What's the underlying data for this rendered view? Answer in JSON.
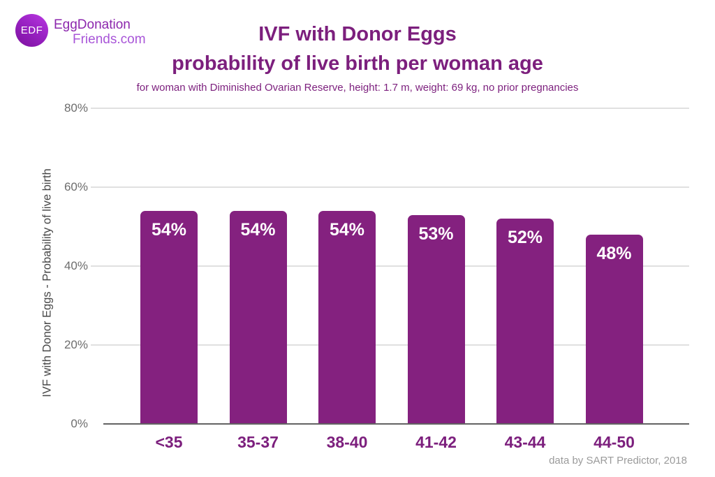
{
  "logo": {
    "badge": "EDF",
    "line1": "EggDonation",
    "line2": "Friends.com"
  },
  "header": {
    "title_line1": "IVF with Donor Eggs",
    "title_line2": "probability of live birth per woman age",
    "subtitle": "for woman with Diminished Ovarian Reserve, height: 1.7 m, weight: 69 kg, no prior pregnancies"
  },
  "chart_data": {
    "type": "bar",
    "categories": [
      "<35",
      "35-37",
      "38-40",
      "41-42",
      "43-44",
      "44-50"
    ],
    "values": [
      54,
      54,
      54,
      53,
      52,
      48
    ],
    "value_labels": [
      "54%",
      "54%",
      "54%",
      "53%",
      "52%",
      "48%"
    ],
    "title": "IVF with Donor Eggs probability of live birth per woman age",
    "xlabel": "",
    "ylabel": "IVF with Donor Eggs - Probability of live birth",
    "ylim": [
      0,
      80
    ],
    "yticks": [
      0,
      20,
      40,
      60,
      80
    ],
    "ytick_labels": [
      "0%",
      "20%",
      "40%",
      "60%",
      "80%"
    ],
    "grid": true,
    "legend": "none",
    "bar_color": "#84217f",
    "bar_label_color": "#ffffff"
  },
  "footer": {
    "source": "data by SART Predictor, 2018"
  },
  "colors": {
    "title_purple": "#7c1f7d",
    "bar_purple": "#84217f",
    "logo_purple_dark": "#8c27ad",
    "logo_purple_light": "#a855d8",
    "grid_gray": "#e0e0e0",
    "axis_line_gray": "#636363",
    "tick_gray": "#6d6d6d",
    "footer_gray": "#9b9b9b"
  }
}
